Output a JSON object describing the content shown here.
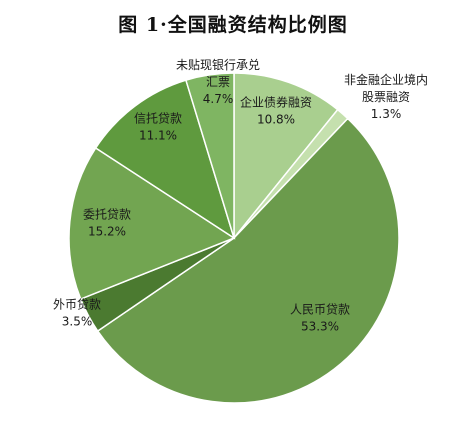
{
  "title": "图 1·全国融资结构比例图",
  "chart_data": {
    "type": "pie",
    "title": "图 1·全国融资结构比例图",
    "slices": [
      {
        "name_lines": [
          "企业债券融资"
        ],
        "value_label": "10.8%",
        "value": 10.8,
        "color": "#a9cf8f"
      },
      {
        "name_lines": [
          "非金融企业境内",
          "股票融资"
        ],
        "value_label": "1.3%",
        "value": 1.3,
        "color": "#c5e0ae"
      },
      {
        "name_lines": [
          "人民币贷款"
        ],
        "value_label": "53.3%",
        "value": 53.3,
        "color": "#6b9b4c"
      },
      {
        "name_lines": [
          "外币贷款"
        ],
        "value_label": "3.5%",
        "value": 3.5,
        "color": "#4b7a30"
      },
      {
        "name_lines": [
          "委托贷款"
        ],
        "value_label": "15.2%",
        "value": 15.2,
        "color": "#72a551"
      },
      {
        "name_lines": [
          "信托贷款"
        ],
        "value_label": "11.1%",
        "value": 11.1,
        "color": "#5f9a3e"
      },
      {
        "name_lines": [
          "未贴现银行承兑",
          "汇票"
        ],
        "value_label": "4.7%",
        "value": 4.7,
        "color": "#7fb562"
      }
    ]
  }
}
